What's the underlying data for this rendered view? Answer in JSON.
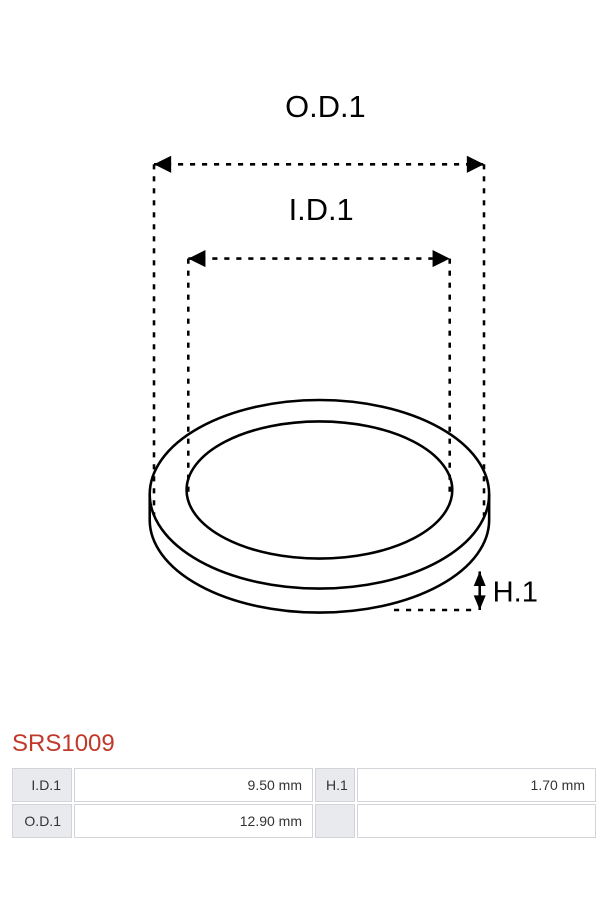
{
  "diagram": {
    "type": "technical-drawing",
    "object": "ring-seal",
    "dimensions_labels": {
      "outer_diameter": "O.D.1",
      "inner_diameter": "I.D.1",
      "height": "H.1"
    },
    "style": {
      "stroke_color": "#000000",
      "stroke_width": 3,
      "dash_pattern": "6 8",
      "label_fontsize": 36,
      "background": "#ffffff"
    }
  },
  "part": {
    "title": "SRS1009",
    "title_color": "#c0392b",
    "specs": [
      {
        "label": "I.D.1",
        "value": "9.50 mm",
        "label2": "H.1",
        "value2": "1.70 mm"
      },
      {
        "label": "O.D.1",
        "value": "12.90 mm",
        "label2": "",
        "value2": ""
      }
    ],
    "table_style": {
      "label_bg": "#e9eaee",
      "value_bg": "#ffffff",
      "border_color": "#d2d4da",
      "fontsize": 14
    }
  }
}
